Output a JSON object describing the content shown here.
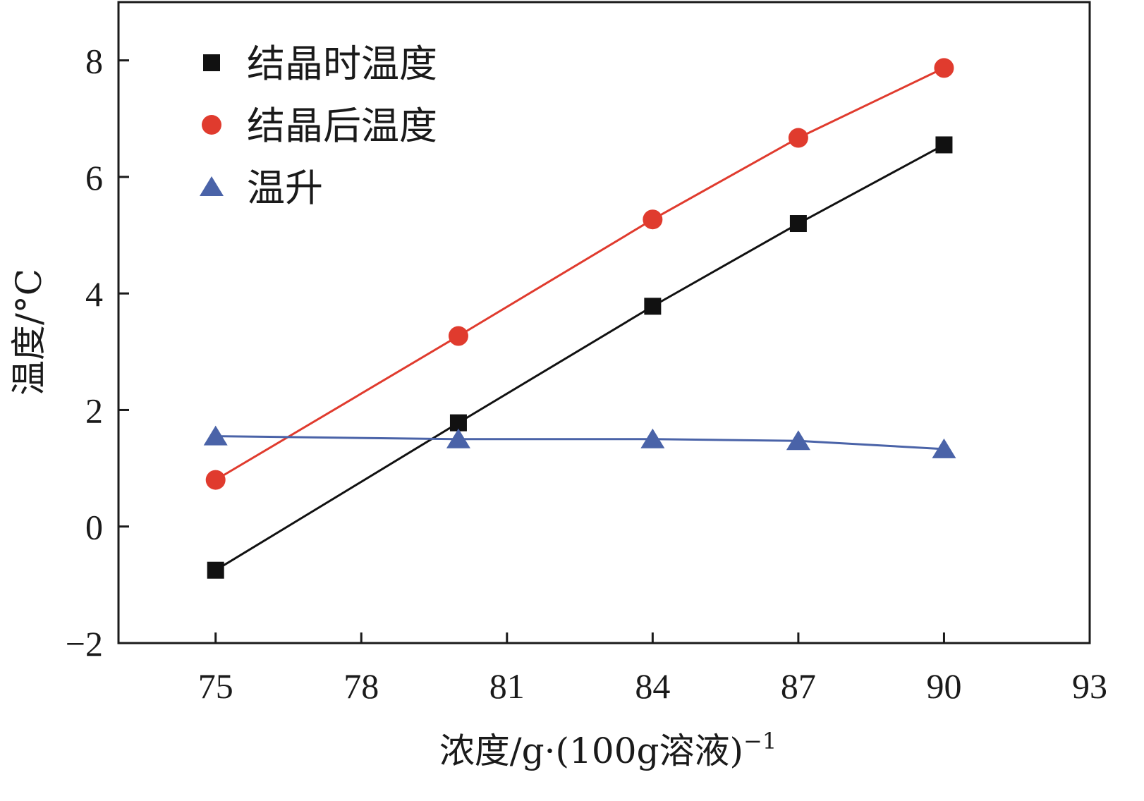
{
  "chart_data": {
    "type": "line",
    "title": "",
    "xlabel": "浓度/g·(100g溶液)",
    "xlabel_superscript": "−1",
    "ylabel": "温度/°C",
    "xlim": [
      73,
      93
    ],
    "ylim": [
      -2,
      9
    ],
    "xticks": [
      75,
      78,
      81,
      84,
      87,
      90,
      93
    ],
    "yticks": [
      -2,
      0,
      2,
      4,
      6,
      8
    ],
    "ytick_labels": [
      "−2",
      "0",
      "2",
      "4",
      "6",
      "8"
    ],
    "legend_position": "top-left",
    "series": [
      {
        "name": "结晶时温度",
        "marker": "square",
        "color": "#111111",
        "x": [
          75,
          80,
          84,
          87,
          90
        ],
        "y": [
          -0.75,
          1.78,
          3.78,
          5.2,
          6.55
        ]
      },
      {
        "name": "结晶后温度",
        "marker": "circle",
        "color": "#e03b2e",
        "x": [
          75,
          80,
          84,
          87,
          90
        ],
        "y": [
          0.8,
          3.27,
          5.27,
          6.67,
          7.87
        ]
      },
      {
        "name": "温升",
        "marker": "triangle",
        "color": "#4a63a8",
        "x": [
          75,
          80,
          84,
          87,
          90
        ],
        "y": [
          1.55,
          1.5,
          1.5,
          1.47,
          1.33
        ]
      }
    ]
  }
}
